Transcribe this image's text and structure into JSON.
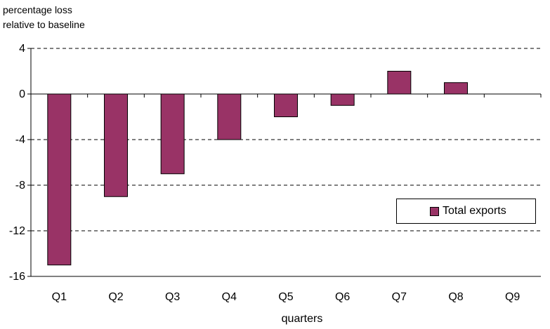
{
  "chart_data": {
    "type": "bar",
    "ylabel_lines": [
      "percentage loss",
      "relative to baseline"
    ],
    "xlabel": "quarters",
    "categories": [
      "Q1",
      "Q2",
      "Q3",
      "Q4",
      "Q5",
      "Q6",
      "Q7",
      "Q8",
      "Q9"
    ],
    "series": [
      {
        "name": "Total exports",
        "values": [
          -15,
          -9,
          -7,
          -4,
          -2,
          -1,
          2,
          1,
          null
        ]
      }
    ],
    "ylim": [
      -16,
      4
    ],
    "yticks": [
      "4",
      "0",
      "-4",
      "-8",
      "-12",
      "-16"
    ],
    "grid": "horizontal dashed",
    "legend_position": "right",
    "bar_color": "#993366"
  }
}
